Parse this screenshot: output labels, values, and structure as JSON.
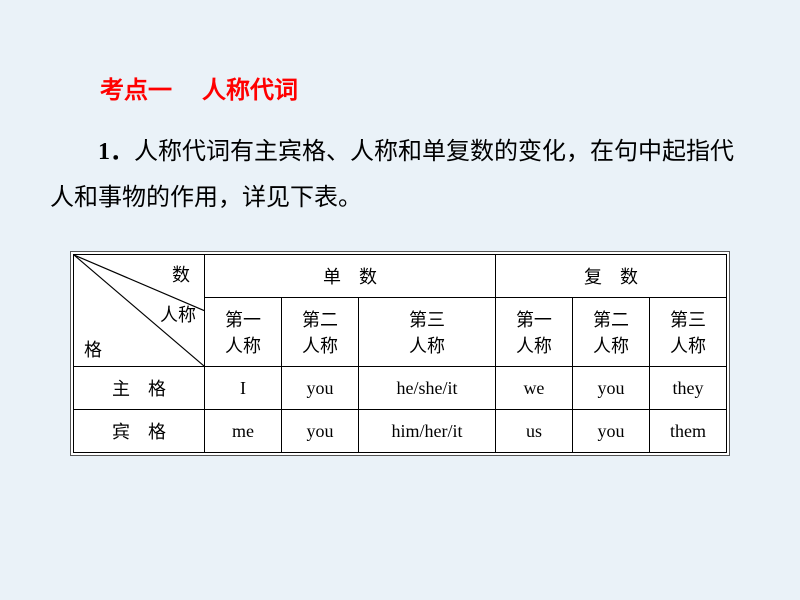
{
  "heading": {
    "label1": "考点一",
    "label2": "人称代词"
  },
  "paragraph": {
    "lead": "1．",
    "text": "人称代词有主宾格、人称和单复数的变化，在句中起指代人和事物的作用，详见下表。"
  },
  "table": {
    "corner": {
      "top_label": "数",
      "mid_label": "人称",
      "bot_label": "格"
    },
    "group_headers": [
      "单　数",
      "复　数"
    ],
    "sub_headers": {
      "singular": [
        "第一\n人称",
        "第二\n人称",
        "第三\n人称"
      ],
      "plural": [
        "第一\n人称",
        "第二\n人称",
        "第三\n人称"
      ]
    },
    "rows": [
      {
        "label": "主　格",
        "cells": [
          "I",
          "you",
          "he/she/it",
          "we",
          "you",
          "they"
        ]
      },
      {
        "label": "宾　格",
        "cells": [
          "me",
          "you",
          "him/her/it",
          "us",
          "you",
          "them"
        ]
      }
    ]
  },
  "style": {
    "background": "#eaf2f8",
    "heading_color": "#ff0000",
    "text_color": "#000000",
    "border_color": "#000000",
    "heading_fontsize": 24,
    "body_fontsize": 24,
    "table_fontsize": 18,
    "col_widths_pct": [
      18,
      10,
      10,
      18,
      10,
      10,
      12
    ]
  }
}
